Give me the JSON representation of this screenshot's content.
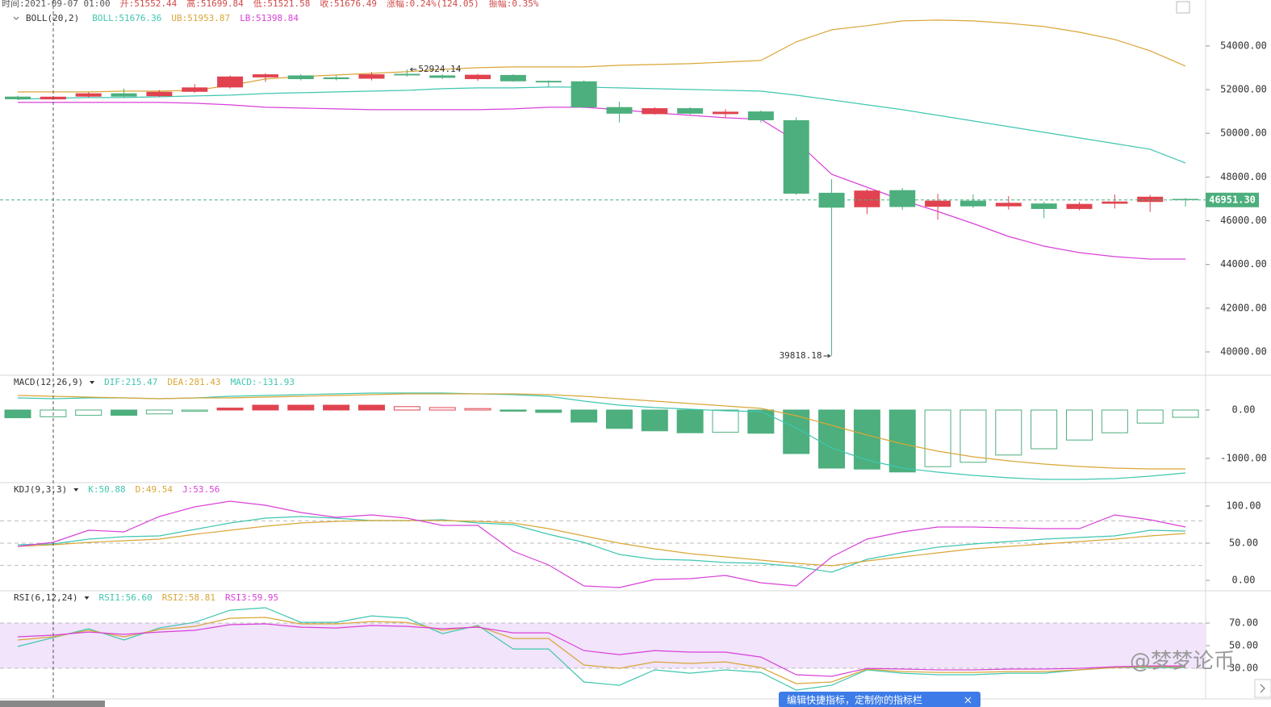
{
  "toolbar": [
    "时间:2021-09-07 01:00",
    "开:51552.44",
    "高:51699.84",
    "低:51521.58",
    "收:51676.49",
    "涨幅:0.24%(124.05)",
    "振幅:0.35%"
  ],
  "watermark": "@梦梦论币",
  "tooltip": "编辑快捷指标，定制你的指标栏",
  "chart_data": [
    {
      "type": "candlestick",
      "indicator": "BOLL(20,2)",
      "up_color": "#e0434f",
      "down_color": "#4caf7d",
      "ylim": [
        38930,
        56100
      ],
      "yticks": [
        {
          "value": 40000,
          "label": "40000.00"
        },
        {
          "value": 42000,
          "label": "42000.00"
        },
        {
          "value": 44000,
          "label": "44000.00"
        },
        {
          "value": 46000,
          "label": "46000.00"
        },
        {
          "value": 48000,
          "label": "48000.00"
        },
        {
          "value": 50000,
          "label": "50000.00"
        },
        {
          "value": 52000,
          "label": "52000.00"
        },
        {
          "value": 54000,
          "label": "54000.00"
        }
      ],
      "open": [
        51680,
        51552.44,
        51680,
        51830,
        51700,
        51900,
        52100,
        52560,
        52650,
        52560,
        52500,
        52720,
        52650,
        52480,
        52670,
        52400,
        52380,
        51200,
        50880,
        51150,
        50880,
        51000,
        50600,
        47280,
        46620,
        47400,
        46640,
        46920,
        46660,
        46790,
        46540,
        46780,
        46860,
        47000
      ],
      "high": [
        51720,
        51699.84,
        51880,
        52050,
        51980,
        52250,
        52650,
        52750,
        52700,
        52650,
        52800,
        52924.14,
        52700,
        52720,
        52700,
        52420,
        52420,
        51450,
        51200,
        51200,
        51100,
        51050,
        50730,
        47900,
        47450,
        47500,
        47230,
        47200,
        47130,
        46880,
        46860,
        47200,
        47180,
        47040
      ],
      "low": [
        51520,
        51521.58,
        51640,
        51640,
        51660,
        51850,
        52050,
        52350,
        52420,
        52420,
        52420,
        52600,
        52480,
        52400,
        52360,
        52100,
        51150,
        50500,
        50850,
        50850,
        50700,
        50500,
        47180,
        39818.18,
        46300,
        46500,
        46050,
        46580,
        46510,
        46120,
        46480,
        46560,
        46400,
        46650
      ],
      "close": [
        51560,
        51676.49,
        51830,
        51680,
        51900,
        52100,
        52600,
        52700,
        52480,
        52480,
        52700,
        52650,
        52540,
        52680,
        52380,
        52330,
        51190,
        50900,
        51150,
        50900,
        50990,
        50600,
        47240,
        46600,
        47380,
        46630,
        46920,
        46660,
        46820,
        46540,
        46770,
        46880,
        47100,
        46951.3
      ],
      "series": [
        {
          "name": "BOLL:51676.36",
          "color": "#3fc6b0",
          "values": [
            51562,
            51599,
            51636,
            51636,
            51673,
            51710,
            51747,
            51820,
            51857,
            51894,
            51931,
            51968,
            52042,
            52079,
            52079,
            52116,
            52116,
            52079,
            52042,
            52005,
            51968,
            51931,
            51747,
            51525,
            51303,
            51082,
            50823,
            50565,
            50306,
            50047,
            49789,
            49530,
            49272,
            48644
          ]
        },
        {
          "name": "UB:51953.87",
          "color": "#d9a637",
          "values": [
            51894,
            51894,
            51894,
            51931,
            51931,
            51968,
            52190,
            52486,
            52596,
            52670,
            52744,
            52818,
            52929,
            53003,
            53040,
            53040,
            53040,
            53113,
            53150,
            53187,
            53261,
            53335,
            54185,
            54739,
            54924,
            55145,
            55182,
            55145,
            55034,
            54887,
            54628,
            54296,
            53778,
            53076
          ]
        },
        {
          "name": "LB:51398.84",
          "color": "#d940d9",
          "values": [
            51414,
            51414,
            51414,
            51414,
            51414,
            51377,
            51303,
            51193,
            51156,
            51119,
            51082,
            51082,
            51082,
            51082,
            51119,
            51193,
            51193,
            51082,
            50934,
            50823,
            50712,
            50638,
            49641,
            48126,
            47535,
            46944,
            46427,
            45873,
            45282,
            44839,
            44543,
            44358,
            44247,
            44247
          ]
        }
      ],
      "high_mark": 52924.14,
      "low_mark": 39818.18,
      "last_price": {
        "value": 46951.3,
        "label": "46951.30"
      }
    },
    {
      "type": "macd",
      "indicator": "MACD(12,26,9)",
      "up_color": "#e0434f",
      "down_color": "#4caf7d",
      "ylim": [
        -1500,
        717
      ],
      "yticks": [
        {
          "value": -1000,
          "label": "-1000.00"
        },
        {
          "value": 0,
          "label": "0.00"
        }
      ],
      "series": [
        {
          "name": "DIF:215.47",
          "color": "#3fc6b0",
          "values": [
            250,
            233,
            250,
            250,
            233,
            250,
            283,
            300,
            317,
            333,
            350,
            350,
            350,
            333,
            317,
            283,
            183,
            100,
            50,
            17,
            -17,
            -33,
            -367,
            -783,
            -1033,
            -1200,
            -1283,
            -1350,
            -1400,
            -1433,
            -1433,
            -1417,
            -1367,
            -1300
          ]
        },
        {
          "name": "DEA:281.43",
          "color": "#d9a637",
          "values": [
            300,
            283,
            267,
            250,
            233,
            250,
            250,
            267,
            283,
            300,
            317,
            333,
            333,
            333,
            333,
            317,
            283,
            233,
            183,
            133,
            83,
            33,
            -117,
            -317,
            -517,
            -700,
            -850,
            -967,
            -1050,
            -1117,
            -1167,
            -1200,
            -1217,
            -1217
          ]
        }
      ],
      "histogram": {
        "name": "MACD:-131.93",
        "color": "#3fc6b0",
        "values": [
          -160,
          -140,
          -110,
          -110,
          -80,
          -20,
          40,
          100,
          100,
          100,
          100,
          70,
          50,
          30,
          -10,
          -50,
          -250,
          -380,
          -430,
          -470,
          -460,
          -480,
          -900,
          -1200,
          -1220,
          -1280,
          -1170,
          -1080,
          -930,
          -800,
          -620,
          -470,
          -270,
          -150
        ]
      }
    },
    {
      "type": "line",
      "indicator": "KDJ(9,3,3)",
      "ylim": [
        -14.1,
        131.5
      ],
      "yticks": [
        {
          "value": 0,
          "label": "0.00"
        },
        {
          "value": 50,
          "label": "50.00"
        },
        {
          "value": 100,
          "label": "100.00"
        }
      ],
      "hlines": [
        80,
        50,
        20
      ],
      "series": [
        {
          "name": "K:50.88",
          "color": "#3fc6b0",
          "values": [
            47.8,
            48.9,
            55.4,
            58.7,
            59.8,
            68.5,
            77.2,
            83.7,
            85.9,
            83.7,
            80.4,
            80.4,
            81.5,
            77.2,
            75,
            62,
            51.1,
            34.8,
            28.3,
            27.2,
            23.9,
            22.8,
            18.5,
            10.9,
            28.3,
            37,
            44.6,
            48.9,
            52.2,
            55.4,
            57.6,
            59.8,
            67.4,
            66.3
          ]
        },
        {
          "name": "D:49.54",
          "color": "#d9a637",
          "values": [
            45.7,
            47.8,
            51.1,
            53.3,
            55.4,
            62,
            67.4,
            72.8,
            77.2,
            79.3,
            80.4,
            80.4,
            80.4,
            79.3,
            77.2,
            69.6,
            59.8,
            50,
            42.4,
            35.9,
            31.5,
            27.2,
            22.8,
            19.6,
            26.1,
            31.5,
            37,
            42.4,
            45.7,
            48.9,
            52.2,
            55.4,
            59.8,
            63
          ]
        },
        {
          "name": "J:53.56",
          "color": "#d940d9",
          "values": [
            45.7,
            51.1,
            67.4,
            65.2,
            85.9,
            98.9,
            106.5,
            101.1,
            91.3,
            84.8,
            88,
            83.7,
            73.9,
            73.9,
            39.1,
            20.7,
            -7.6,
            -9.8,
            1.1,
            2.2,
            6.5,
            -3.3,
            -7.6,
            31.5,
            55.4,
            65.2,
            71.7,
            71.7,
            70.7,
            69.6,
            69.6,
            88,
            81.5,
            71.7
          ]
        }
      ]
    },
    {
      "type": "line",
      "indicator": "RSI(6,12,24)",
      "ylim": [
        2.9,
        98.6
      ],
      "yticks": [
        {
          "value": 30,
          "label": "30.00"
        },
        {
          "value": 50,
          "label": "50.00"
        },
        {
          "value": 70,
          "label": "70.00"
        }
      ],
      "band": [
        30,
        70
      ],
      "band_color": "#f1e4fb",
      "series": [
        {
          "name": "RSI1:56.60",
          "color": "#3fc6b0",
          "values": [
            49.3,
            57.1,
            65,
            55,
            65.7,
            70.7,
            81.4,
            83.6,
            70.7,
            70.7,
            76.4,
            74.3,
            60.7,
            67.9,
            47.1,
            47.1,
            17.9,
            15,
            28.6,
            25.7,
            28.6,
            26.4,
            10.7,
            15,
            28.6,
            25.7,
            24.3,
            24.3,
            25.7,
            25.7,
            28.6,
            30.7,
            30.7,
            30.7
          ]
        },
        {
          "name": "RSI2:58.81",
          "color": "#d9a637",
          "values": [
            55,
            57.9,
            63.6,
            57.9,
            64.3,
            67.1,
            74.3,
            75,
            69.3,
            69.3,
            71.4,
            70.7,
            63.6,
            67.1,
            56.4,
            56.4,
            32.9,
            30,
            35.7,
            34.3,
            35.7,
            30.7,
            16.4,
            17.9,
            29.3,
            27.1,
            26.4,
            26.4,
            27.1,
            27.1,
            28.6,
            30.7,
            31.4,
            31.4
          ]
        },
        {
          "name": "RSI3:59.95",
          "color": "#d940d9",
          "values": [
            57.9,
            59.3,
            62.1,
            60,
            62.1,
            63.6,
            68.6,
            69.3,
            66.4,
            65.7,
            67.9,
            67.1,
            65,
            66.4,
            61.4,
            61.4,
            45.7,
            42.1,
            45.7,
            44.3,
            44.3,
            40,
            24.3,
            22.9,
            30,
            29.3,
            28.6,
            28.6,
            29.3,
            29.3,
            30,
            31.4,
            32.1,
            32.1
          ]
        }
      ]
    }
  ]
}
